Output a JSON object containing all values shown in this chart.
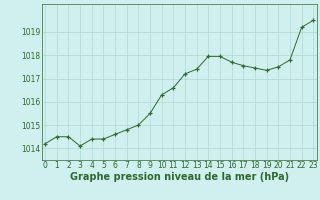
{
  "x": [
    0,
    1,
    2,
    3,
    4,
    5,
    6,
    7,
    8,
    9,
    10,
    11,
    12,
    13,
    14,
    15,
    16,
    17,
    18,
    19,
    20,
    21,
    22,
    23
  ],
  "y": [
    1014.2,
    1014.5,
    1014.5,
    1014.1,
    1014.4,
    1014.4,
    1014.6,
    1014.8,
    1015.0,
    1015.5,
    1016.3,
    1016.6,
    1017.2,
    1017.4,
    1017.95,
    1017.95,
    1017.7,
    1017.55,
    1017.45,
    1017.35,
    1017.5,
    1017.8,
    1019.2,
    1019.5
  ],
  "line_color": "#2d6a2d",
  "marker_color": "#2d6a2d",
  "bg_color": "#cff0ee",
  "grid_color": "#aed8d4",
  "title": "Graphe pression niveau de la mer (hPa)",
  "ylim_min": 1013.5,
  "ylim_max": 1020.2,
  "xlim_min": -0.3,
  "xlim_max": 23.3,
  "yticks": [
    1014,
    1015,
    1016,
    1017,
    1018,
    1019
  ],
  "xticks": [
    0,
    1,
    2,
    3,
    4,
    5,
    6,
    7,
    8,
    9,
    10,
    11,
    12,
    13,
    14,
    15,
    16,
    17,
    18,
    19,
    20,
    21,
    22,
    23
  ],
  "title_fontsize": 7.0,
  "tick_fontsize": 5.5,
  "title_fontweight": "bold"
}
